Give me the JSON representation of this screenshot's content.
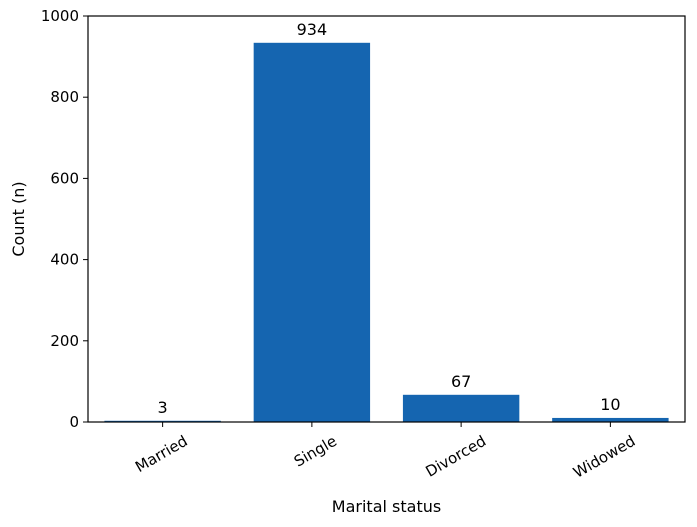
{
  "chart_data": {
    "type": "bar",
    "categories": [
      "Married",
      "Single",
      "Divorced",
      "Widowed"
    ],
    "values": [
      3,
      934,
      67,
      10
    ],
    "data_labels": [
      "3",
      "934",
      "67",
      "10"
    ],
    "title": "",
    "xlabel": "Marital status",
    "ylabel": "Count (n)",
    "ylim": [
      0,
      1000
    ],
    "yticks": [
      0,
      200,
      400,
      600,
      800,
      1000
    ],
    "ytick_labels": [
      "0",
      "200",
      "400",
      "600",
      "800",
      "1000"
    ],
    "bar_color": "#1565b0",
    "grid": false,
    "legend": "none"
  }
}
